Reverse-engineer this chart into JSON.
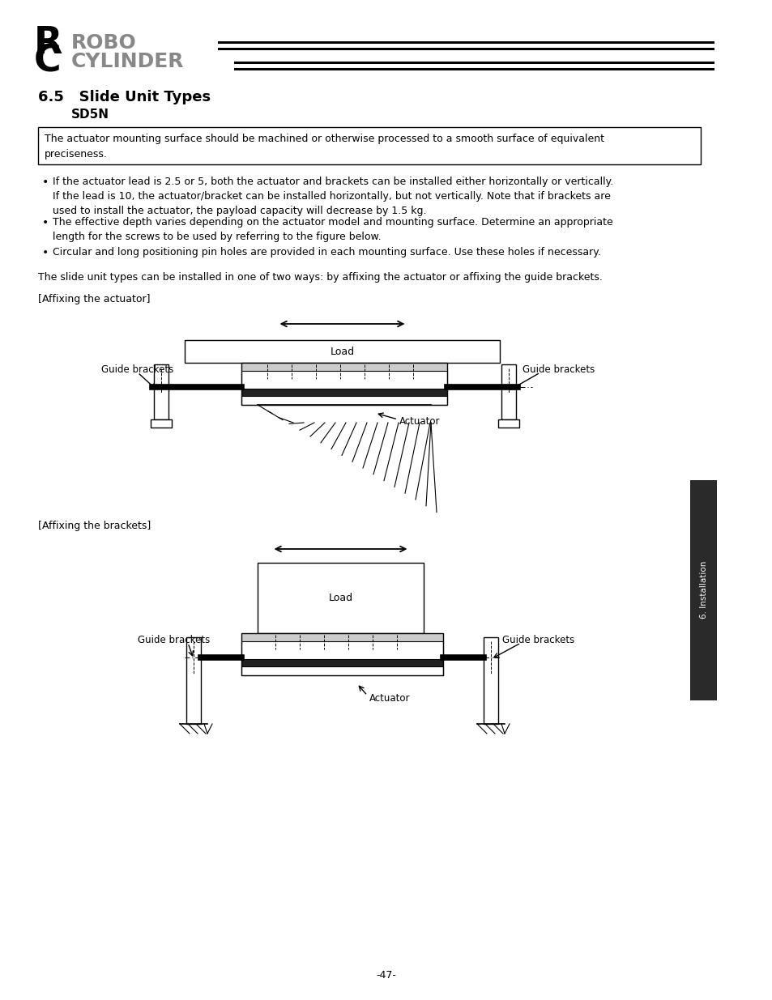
{
  "title": "6.5   Slide Unit Types",
  "subtitle": "SD5N",
  "box_text": "The actuator mounting surface should be machined or otherwise processed to a smooth surface of equivalent\npreciseness.",
  "bullet1": "If the actuator lead is 2.5 or 5, both the actuator and brackets can be installed either horizontally or vertically.\nIf the lead is 10, the actuator/bracket can be installed horizontally, but not vertically. Note that if brackets are\nused to install the actuator, the payload capacity will decrease by 1.5 kg.",
  "bullet2": "The effective depth varies depending on the actuator model and mounting surface. Determine an appropriate\nlength for the screws to be used by referring to the figure below.",
  "bullet3": "Circular and long positioning pin holes are provided in each mounting surface. Use these holes if necessary.",
  "para1": "The slide unit types can be installed in one of two ways: by affixing the actuator or affixing the guide brackets.",
  "label1": "[Affixing the actuator]",
  "label2": "[Affixing the brackets]",
  "page_number": "-47-",
  "side_label": "6. Installation",
  "bg_color": "#ffffff",
  "line_color": "#000000"
}
